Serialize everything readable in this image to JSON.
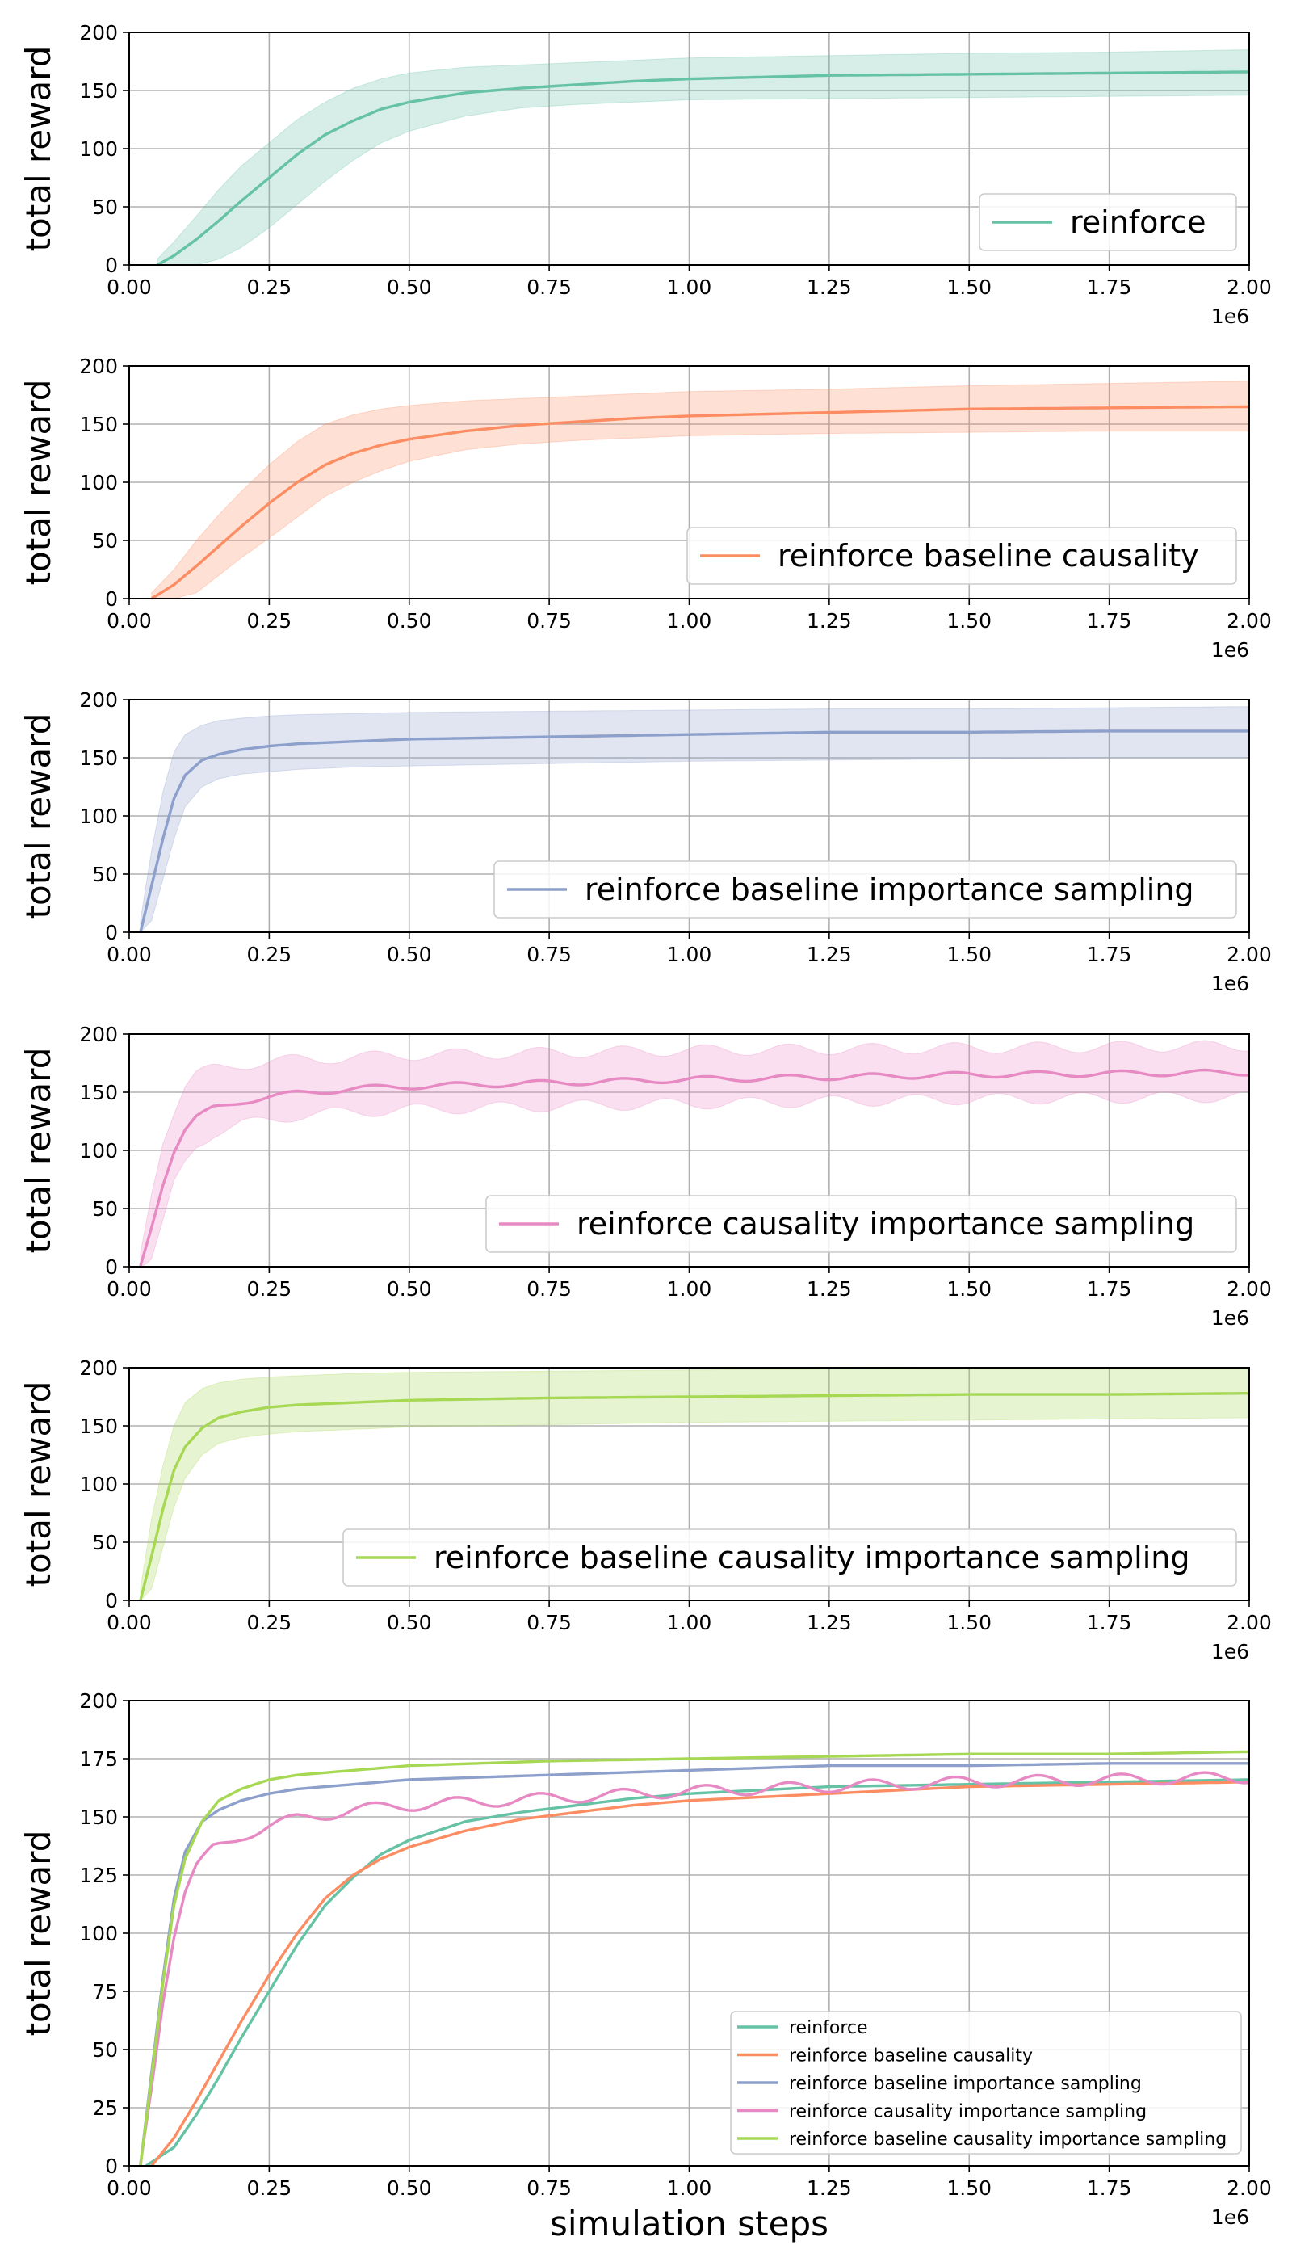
{
  "chart_data": [
    {
      "type": "line",
      "ylabel": "total reward",
      "xlabel": "",
      "xlim": [
        0,
        2000000
      ],
      "ylim": [
        0,
        200
      ],
      "xticks": [
        "0.00",
        "0.25",
        "0.50",
        "0.75",
        "1.00",
        "1.25",
        "1.50",
        "1.75",
        "2.00"
      ],
      "yticks": [
        "0",
        "50",
        "100",
        "150",
        "200"
      ],
      "x_scale_label": "1e6",
      "grid": true,
      "legend_position": "lower-right",
      "series": [
        {
          "name": "reinforce",
          "color": "#66c2a5",
          "noise": 0,
          "x": [
            0.05,
            0.08,
            0.12,
            0.16,
            0.2,
            0.25,
            0.3,
            0.35,
            0.4,
            0.45,
            0.5,
            0.6,
            0.7,
            0.8,
            0.9,
            1.0,
            1.25,
            1.5,
            1.75,
            2.0
          ],
          "mean": [
            0,
            8,
            22,
            38,
            55,
            75,
            95,
            112,
            124,
            134,
            140,
            148,
            152,
            155,
            158,
            160,
            163,
            164,
            165,
            166
          ],
          "lower": [
            0,
            0,
            0,
            5,
            15,
            32,
            52,
            72,
            90,
            105,
            115,
            128,
            135,
            138,
            140,
            142,
            143,
            144,
            145,
            146
          ],
          "upper": [
            5,
            20,
            42,
            65,
            85,
            105,
            125,
            140,
            152,
            160,
            165,
            170,
            172,
            174,
            176,
            178,
            180,
            182,
            183,
            185
          ]
        }
      ]
    },
    {
      "type": "line",
      "ylabel": "total reward",
      "xlabel": "",
      "xlim": [
        0,
        2000000
      ],
      "ylim": [
        0,
        200
      ],
      "xticks": [
        "0.00",
        "0.25",
        "0.50",
        "0.75",
        "1.00",
        "1.25",
        "1.50",
        "1.75",
        "2.00"
      ],
      "yticks": [
        "0",
        "50",
        "100",
        "150",
        "200"
      ],
      "x_scale_label": "1e6",
      "grid": true,
      "legend_position": "lower-right",
      "series": [
        {
          "name": "reinforce baseline causality",
          "color": "#fc8d62",
          "noise": 0,
          "x": [
            0.04,
            0.08,
            0.12,
            0.16,
            0.2,
            0.25,
            0.3,
            0.35,
            0.4,
            0.45,
            0.5,
            0.6,
            0.7,
            0.8,
            0.9,
            1.0,
            1.25,
            1.5,
            1.75,
            2.0
          ],
          "mean": [
            0,
            12,
            28,
            45,
            62,
            82,
            100,
            115,
            125,
            132,
            137,
            144,
            149,
            152,
            155,
            157,
            160,
            163,
            164,
            165
          ],
          "lower": [
            0,
            0,
            5,
            20,
            35,
            52,
            70,
            88,
            100,
            110,
            118,
            128,
            133,
            136,
            138,
            140,
            142,
            143,
            144,
            144
          ],
          "upper": [
            5,
            25,
            50,
            72,
            92,
            115,
            135,
            150,
            158,
            163,
            166,
            170,
            172,
            174,
            176,
            178,
            180,
            183,
            185,
            187
          ]
        }
      ]
    },
    {
      "type": "line",
      "ylabel": "total reward",
      "xlabel": "",
      "xlim": [
        0,
        2000000
      ],
      "ylim": [
        0,
        200
      ],
      "xticks": [
        "0.00",
        "0.25",
        "0.50",
        "0.75",
        "1.00",
        "1.25",
        "1.50",
        "1.75",
        "2.00"
      ],
      "yticks": [
        "0",
        "50",
        "100",
        "150",
        "200"
      ],
      "x_scale_label": "1e6",
      "grid": true,
      "legend_position": "lower-right",
      "series": [
        {
          "name": "reinforce baseline importance sampling",
          "color": "#8da0cb",
          "noise": 0,
          "x": [
            0.02,
            0.04,
            0.06,
            0.08,
            0.1,
            0.13,
            0.16,
            0.2,
            0.25,
            0.3,
            0.4,
            0.5,
            0.75,
            1.0,
            1.25,
            1.5,
            1.75,
            2.0
          ],
          "mean": [
            0,
            40,
            80,
            115,
            135,
            148,
            153,
            157,
            160,
            162,
            164,
            166,
            168,
            170,
            172,
            172,
            173,
            173
          ],
          "lower": [
            0,
            10,
            45,
            80,
            108,
            125,
            132,
            136,
            138,
            140,
            142,
            143,
            145,
            147,
            148,
            149,
            150,
            150
          ],
          "upper": [
            10,
            70,
            120,
            155,
            170,
            178,
            182,
            184,
            186,
            187,
            188,
            189,
            190,
            191,
            192,
            192,
            193,
            194
          ]
        }
      ]
    },
    {
      "type": "line",
      "ylabel": "total reward",
      "xlabel": "",
      "xlim": [
        0,
        2000000
      ],
      "ylim": [
        0,
        200
      ],
      "xticks": [
        "0.00",
        "0.25",
        "0.50",
        "0.75",
        "1.00",
        "1.25",
        "1.50",
        "1.75",
        "2.00"
      ],
      "yticks": [
        "0",
        "50",
        "100",
        "150",
        "200"
      ],
      "x_scale_label": "1e6",
      "grid": true,
      "legend_position": "lower-right",
      "series": [
        {
          "name": "reinforce causality importance sampling",
          "color": "#e78ac3",
          "noise": 2,
          "x": [
            0.02,
            0.04,
            0.06,
            0.08,
            0.1,
            0.12,
            0.15,
            0.2,
            0.25,
            0.3,
            0.4,
            0.5,
            0.75,
            1.0,
            1.25,
            1.5,
            1.75,
            2.0
          ],
          "mean": [
            0,
            35,
            72,
            100,
            118,
            128,
            136,
            142,
            146,
            149,
            153,
            155,
            158,
            161,
            163,
            165,
            166,
            167
          ],
          "lower": [
            0,
            5,
            35,
            70,
            90,
            105,
            115,
            122,
            126,
            130,
            133,
            135,
            138,
            140,
            142,
            144,
            145,
            146
          ],
          "upper": [
            10,
            65,
            110,
            135,
            155,
            165,
            170,
            174,
            176,
            178,
            180,
            182,
            184,
            186,
            187,
            188,
            189,
            190
          ]
        }
      ]
    },
    {
      "type": "line",
      "ylabel": "total reward",
      "xlabel": "",
      "xlim": [
        0,
        2000000
      ],
      "ylim": [
        0,
        200
      ],
      "xticks": [
        "0.00",
        "0.25",
        "0.50",
        "0.75",
        "1.00",
        "1.25",
        "1.50",
        "1.75",
        "2.00"
      ],
      "yticks": [
        "0",
        "50",
        "100",
        "150",
        "200"
      ],
      "x_scale_label": "1e6",
      "grid": true,
      "legend_position": "lower-right",
      "series": [
        {
          "name": "reinforce baseline causality importance sampling",
          "color": "#a6d854",
          "noise": 0,
          "x": [
            0.02,
            0.04,
            0.06,
            0.08,
            0.1,
            0.13,
            0.16,
            0.2,
            0.25,
            0.3,
            0.4,
            0.5,
            0.75,
            1.0,
            1.25,
            1.5,
            1.75,
            2.0
          ],
          "mean": [
            0,
            38,
            78,
            112,
            132,
            148,
            157,
            162,
            166,
            168,
            170,
            172,
            174,
            175,
            176,
            177,
            177,
            178
          ],
          "lower": [
            0,
            10,
            45,
            80,
            105,
            125,
            135,
            140,
            143,
            145,
            147,
            149,
            151,
            153,
            154,
            155,
            156,
            157
          ],
          "upper": [
            10,
            70,
            115,
            150,
            170,
            182,
            187,
            190,
            192,
            193,
            195,
            196,
            197,
            198,
            199,
            200,
            200,
            200
          ]
        }
      ]
    },
    {
      "type": "line",
      "ylabel": "total reward",
      "xlabel": "simulation steps",
      "xlim": [
        0,
        2000000
      ],
      "ylim": [
        0,
        200
      ],
      "xticks": [
        "0.00",
        "0.25",
        "0.50",
        "0.75",
        "1.00",
        "1.25",
        "1.50",
        "1.75",
        "2.00"
      ],
      "yticks": [
        "0",
        "25",
        "50",
        "75",
        "100",
        "125",
        "150",
        "175",
        "200"
      ],
      "x_scale_label": "1e6",
      "grid": true,
      "legend_position": "lower-right",
      "series": [
        {
          "name": "reinforce",
          "color": "#66c2a5",
          "noise": 0,
          "x": [
            0.03,
            0.08,
            0.12,
            0.16,
            0.2,
            0.25,
            0.3,
            0.35,
            0.4,
            0.45,
            0.5,
            0.6,
            0.7,
            0.8,
            0.9,
            1.0,
            1.25,
            1.5,
            1.75,
            2.0
          ],
          "mean": [
            0,
            8,
            22,
            38,
            55,
            75,
            95,
            112,
            124,
            134,
            140,
            148,
            152,
            155,
            158,
            160,
            163,
            164,
            165,
            166
          ]
        },
        {
          "name": "reinforce baseline causality",
          "color": "#fc8d62",
          "noise": 0,
          "x": [
            0.04,
            0.08,
            0.12,
            0.16,
            0.2,
            0.25,
            0.3,
            0.35,
            0.4,
            0.45,
            0.5,
            0.6,
            0.7,
            0.8,
            0.9,
            1.0,
            1.25,
            1.5,
            1.75,
            2.0
          ],
          "mean": [
            0,
            12,
            28,
            45,
            62,
            82,
            100,
            115,
            125,
            132,
            137,
            144,
            149,
            152,
            155,
            157,
            160,
            163,
            164,
            165
          ]
        },
        {
          "name": "reinforce baseline importance sampling",
          "color": "#8da0cb",
          "noise": 0,
          "x": [
            0.02,
            0.04,
            0.06,
            0.08,
            0.1,
            0.13,
            0.16,
            0.2,
            0.25,
            0.3,
            0.4,
            0.5,
            0.75,
            1.0,
            1.25,
            1.5,
            1.75,
            2.0
          ],
          "mean": [
            0,
            40,
            80,
            115,
            135,
            148,
            153,
            157,
            160,
            162,
            164,
            166,
            168,
            170,
            172,
            172,
            173,
            173
          ]
        },
        {
          "name": "reinforce causality importance sampling",
          "color": "#e78ac3",
          "noise": 2,
          "x": [
            0.02,
            0.04,
            0.06,
            0.08,
            0.1,
            0.12,
            0.15,
            0.2,
            0.25,
            0.3,
            0.4,
            0.5,
            0.75,
            1.0,
            1.25,
            1.5,
            1.75,
            2.0
          ],
          "mean": [
            0,
            35,
            72,
            100,
            118,
            128,
            136,
            142,
            146,
            149,
            153,
            155,
            158,
            161,
            163,
            165,
            166,
            167
          ]
        },
        {
          "name": "reinforce baseline causality importance sampling",
          "color": "#a6d854",
          "noise": 0,
          "x": [
            0.02,
            0.04,
            0.06,
            0.08,
            0.1,
            0.13,
            0.16,
            0.2,
            0.25,
            0.3,
            0.4,
            0.5,
            0.75,
            1.0,
            1.25,
            1.5,
            1.75,
            2.0
          ],
          "mean": [
            0,
            38,
            78,
            112,
            132,
            148,
            157,
            162,
            166,
            168,
            170,
            172,
            174,
            175,
            176,
            177,
            177,
            178
          ]
        }
      ]
    }
  ]
}
